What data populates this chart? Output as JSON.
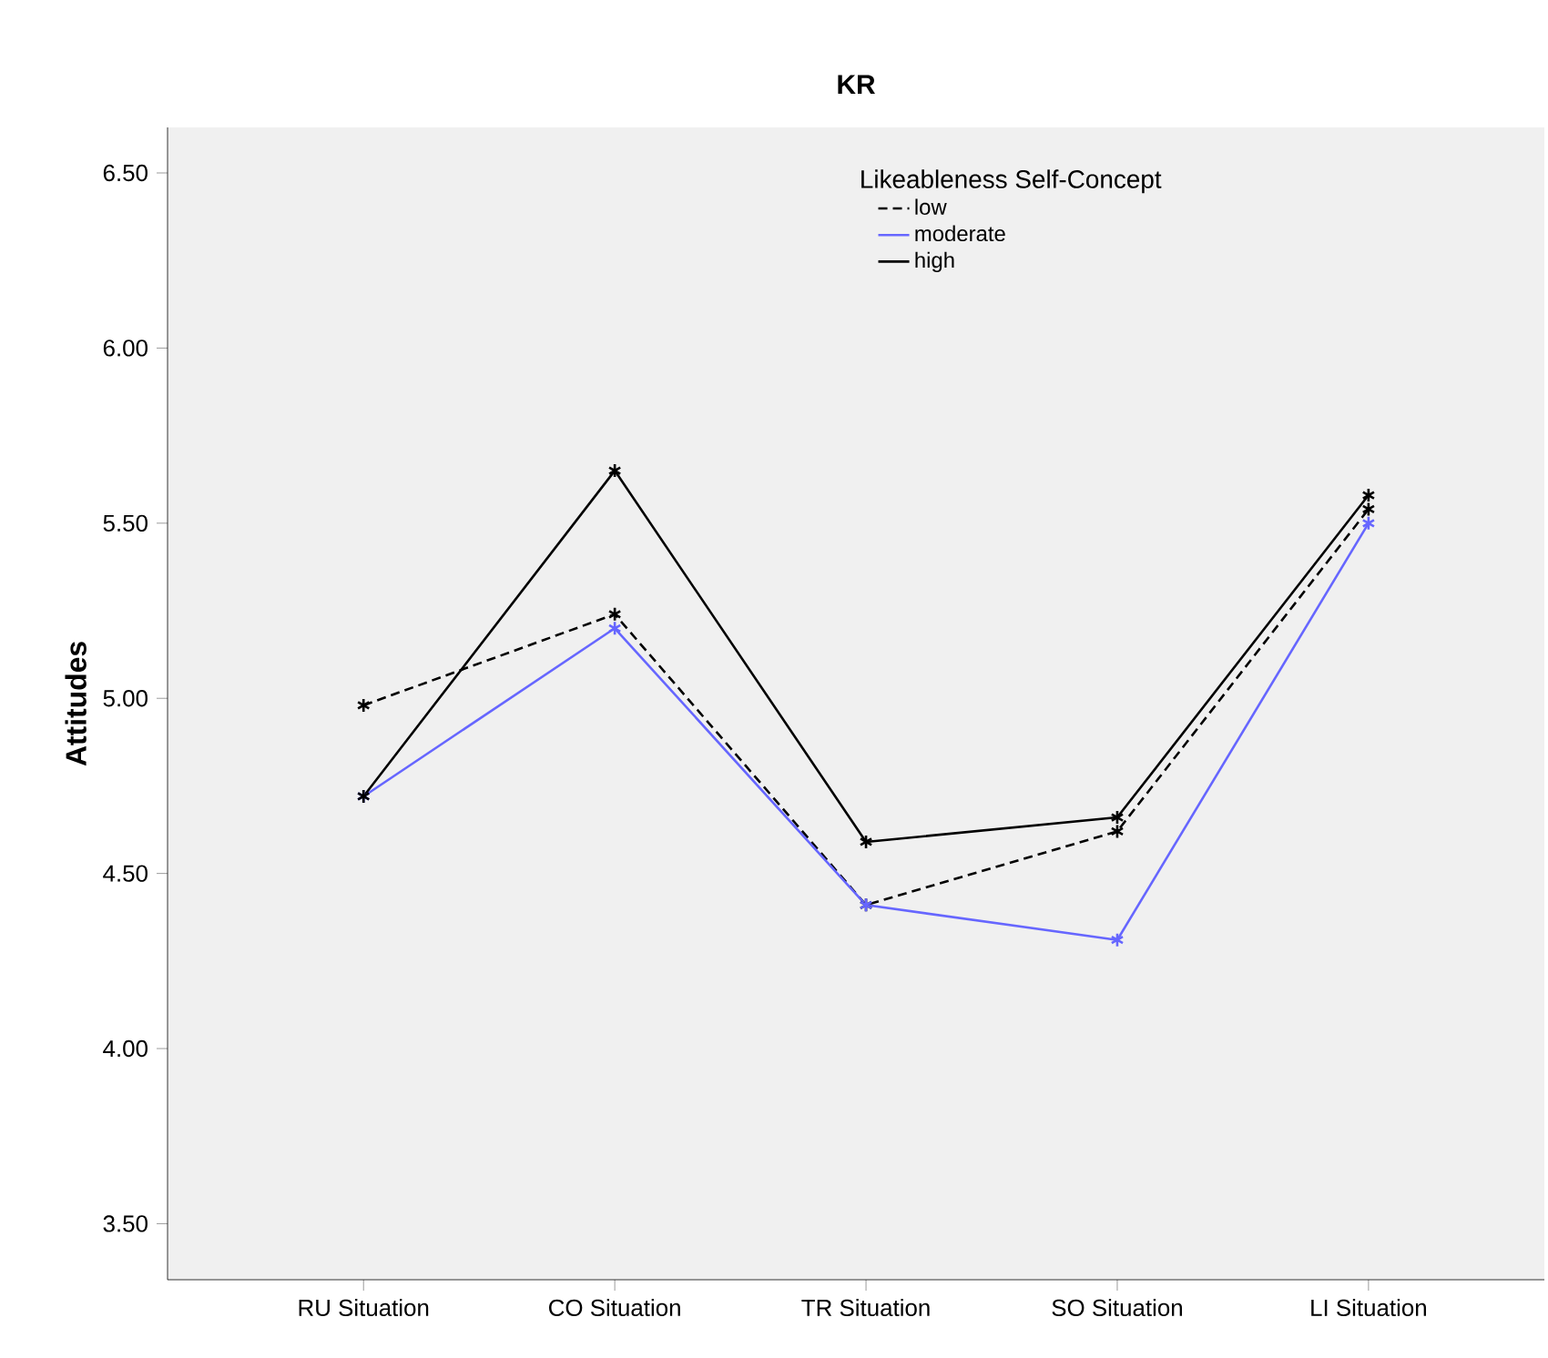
{
  "chart_data": {
    "type": "line",
    "title": "KR",
    "ylabel": "Attitudes",
    "legend_title": "Likeableness Self-Concept",
    "categories": [
      "RU Situation",
      "CO Situation",
      "TR Situation",
      "SO Situation",
      "LI Situation"
    ],
    "series": [
      {
        "name": "low",
        "color": "#000000",
        "line_style": "dashed",
        "values": [
          4.98,
          5.24,
          4.41,
          4.62,
          5.54
        ]
      },
      {
        "name": "moderate",
        "color": "#6666ff",
        "line_style": "solid",
        "values": [
          4.72,
          5.2,
          4.41,
          4.31,
          5.5
        ]
      },
      {
        "name": "high",
        "color": "#000000",
        "line_style": "solid",
        "values": [
          4.72,
          5.65,
          4.59,
          4.66,
          5.58
        ]
      }
    ],
    "marker": "cross",
    "legend": "top",
    "grid": false,
    "ylim": [
      3.34,
      6.63
    ],
    "yticks": [
      {
        "value": 3.5,
        "label": "3.50"
      },
      {
        "value": 4,
        "label": "4.00"
      },
      {
        "value": 4.5,
        "label": "4.50"
      },
      {
        "value": 5,
        "label": "5.00"
      },
      {
        "value": 5.5,
        "label": "5.50"
      },
      {
        "value": 6,
        "label": "6.00"
      },
      {
        "value": 6.5,
        "label": "6.50"
      }
    ]
  }
}
